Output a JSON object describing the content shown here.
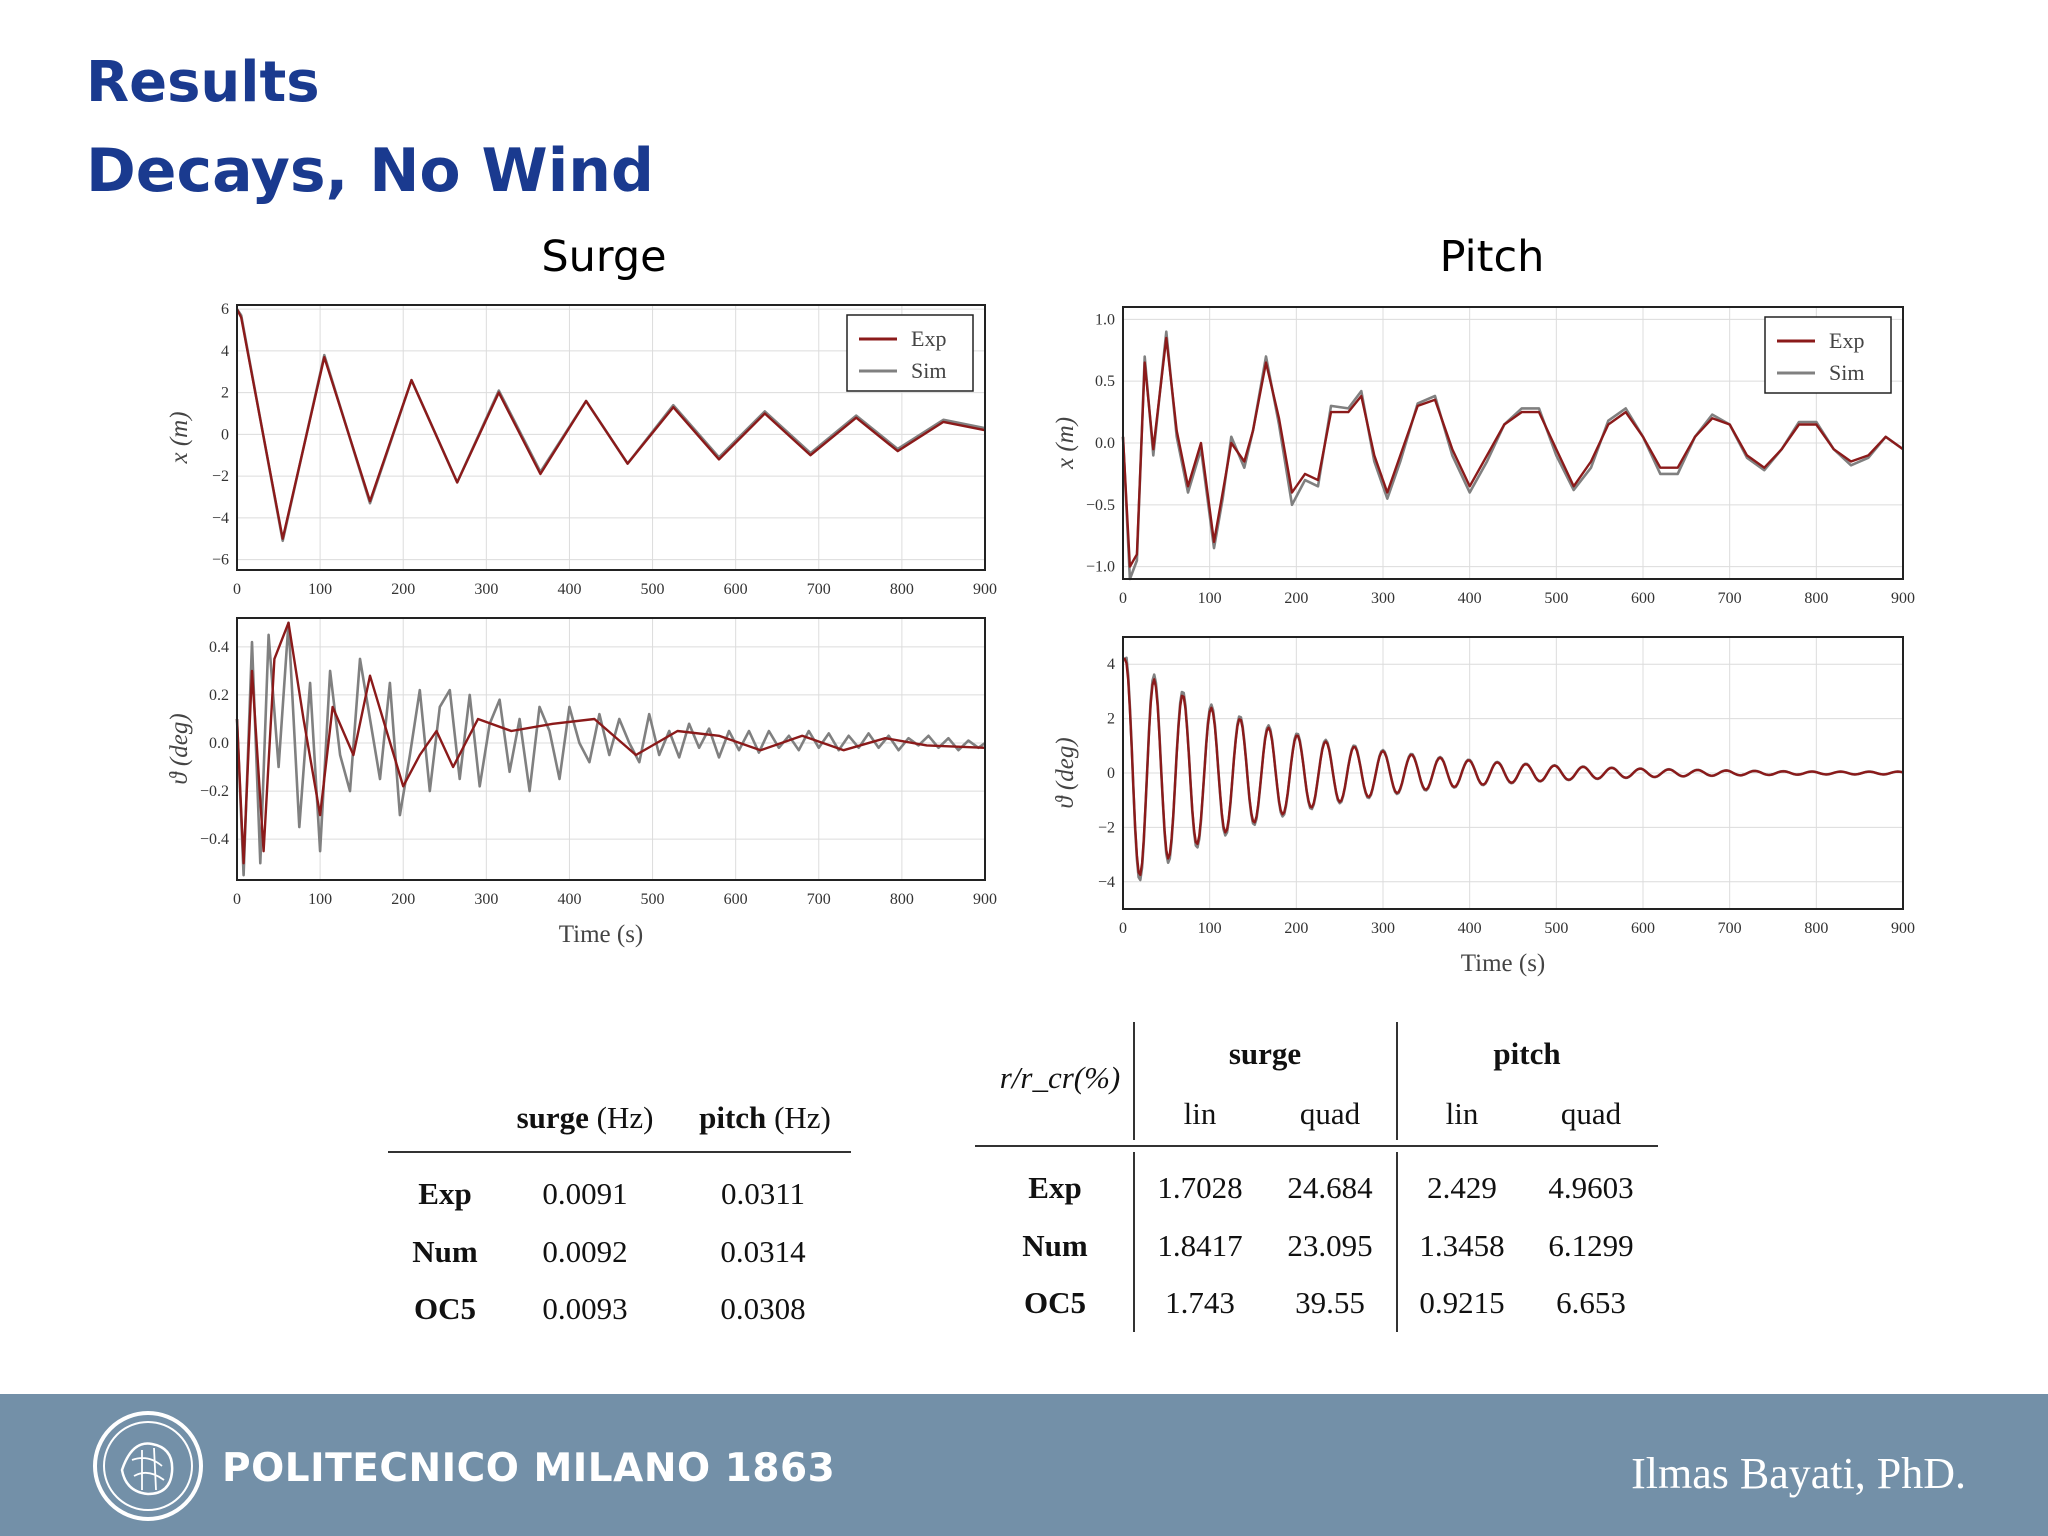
{
  "slide": {
    "title": "Results",
    "subtitle": "Decays, No Wind"
  },
  "figures": {
    "surge_title": "Surge",
    "pitch_title": "Pitch"
  },
  "colors": {
    "exp": "#8b1a1a",
    "sim": "#808080",
    "title": "#1a3a8f",
    "footer": "#7390a8"
  },
  "chart_data": [
    {
      "id": "surge-x",
      "type": "line",
      "xlabel": "",
      "ylabel": "x (m)",
      "xlim": [
        0,
        900
      ],
      "ylim": [
        -6.5,
        6.2
      ],
      "xticks": [
        0,
        100,
        200,
        300,
        400,
        500,
        600,
        700,
        800,
        900
      ],
      "yticks": [
        -6,
        -4,
        -2,
        0,
        2,
        4,
        6
      ],
      "ytick_labels": [
        "−6",
        "−4",
        "−2",
        "0",
        "2",
        "4",
        "6"
      ],
      "grid": true,
      "legend": "top-right",
      "series": [
        {
          "name": "Exp",
          "x": [
            0,
            5,
            55,
            105,
            160,
            210,
            265,
            315,
            365,
            420,
            470,
            525,
            580,
            635,
            690,
            745,
            795,
            850,
            900
          ],
          "values": [
            6,
            5.6,
            -5.0,
            3.7,
            -3.2,
            2.6,
            -2.3,
            2.0,
            -1.9,
            1.6,
            -1.4,
            1.3,
            -1.2,
            1.0,
            -1.0,
            0.8,
            -0.8,
            0.6,
            0.2
          ]
        },
        {
          "name": "Sim",
          "x": [
            0,
            5,
            55,
            105,
            160,
            210,
            265,
            315,
            365,
            420,
            470,
            525,
            580,
            635,
            690,
            745,
            795,
            850,
            900
          ],
          "values": [
            6,
            5.7,
            -5.1,
            3.8,
            -3.3,
            2.6,
            -2.3,
            2.1,
            -1.8,
            1.6,
            -1.4,
            1.4,
            -1.1,
            1.1,
            -0.9,
            0.9,
            -0.7,
            0.7,
            0.3
          ]
        }
      ]
    },
    {
      "id": "surge-theta",
      "type": "line",
      "xlabel": "Time (s)",
      "ylabel": "ϑ (deg)",
      "xlim": [
        0,
        900
      ],
      "ylim": [
        -0.57,
        0.52
      ],
      "xticks": [
        0,
        100,
        200,
        300,
        400,
        500,
        600,
        700,
        800,
        900
      ],
      "yticks": [
        -0.4,
        -0.2,
        0,
        0.2,
        0.4
      ],
      "ytick_labels": [
        "−0.4",
        "−0.2",
        "0.0",
        "0.2",
        "0.4"
      ],
      "grid": true,
      "series": [
        {
          "name": "Exp",
          "x": [
            0,
            8,
            18,
            32,
            45,
            62,
            80,
            100,
            115,
            140,
            160,
            180,
            200,
            220,
            240,
            260,
            290,
            330,
            380,
            430,
            480,
            530,
            580,
            630,
            680,
            730,
            780,
            830,
            900
          ],
          "values": [
            0.1,
            -0.5,
            0.3,
            -0.45,
            0.35,
            0.5,
            0.1,
            -0.3,
            0.15,
            -0.05,
            0.28,
            0.05,
            -0.18,
            -0.05,
            0.05,
            -0.1,
            0.1,
            0.05,
            0.08,
            0.1,
            -0.05,
            0.05,
            0.03,
            -0.03,
            0.03,
            -0.03,
            0.02,
            -0.01,
            -0.02
          ]
        },
        {
          "name": "Sim",
          "x": [
            0,
            8,
            18,
            28,
            38,
            50,
            62,
            75,
            88,
            100,
            112,
            124,
            136,
            148,
            160,
            172,
            184,
            196,
            208,
            220,
            232,
            244,
            256,
            268,
            280,
            292,
            304,
            316,
            328,
            340,
            352,
            364,
            376,
            388,
            400,
            412,
            424,
            436,
            448,
            460,
            472,
            484,
            496,
            508,
            520,
            532,
            544,
            556,
            568,
            580,
            592,
            604,
            616,
            628,
            640,
            652,
            664,
            676,
            688,
            700,
            712,
            724,
            736,
            748,
            760,
            772,
            784,
            796,
            808,
            820,
            832,
            844,
            856,
            868,
            880,
            892,
            900
          ],
          "values": [
            0.1,
            -0.55,
            0.42,
            -0.5,
            0.45,
            -0.1,
            0.5,
            -0.35,
            0.25,
            -0.45,
            0.3,
            -0.05,
            -0.2,
            0.35,
            0.1,
            -0.15,
            0.25,
            -0.3,
            -0.05,
            0.22,
            -0.2,
            0.15,
            0.22,
            -0.15,
            0.2,
            -0.18,
            0.08,
            0.18,
            -0.12,
            0.1,
            -0.2,
            0.15,
            0.05,
            -0.15,
            0.15,
            0.0,
            -0.08,
            0.12,
            -0.05,
            0.1,
            0.0,
            -0.08,
            0.12,
            -0.05,
            0.05,
            -0.06,
            0.08,
            -0.02,
            0.06,
            -0.06,
            0.05,
            -0.03,
            0.05,
            -0.04,
            0.05,
            -0.02,
            0.03,
            -0.03,
            0.05,
            -0.02,
            0.04,
            -0.03,
            0.03,
            -0.02,
            0.04,
            -0.02,
            0.03,
            -0.03,
            0.02,
            -0.01,
            0.03,
            -0.02,
            0.02,
            -0.03,
            0.01,
            -0.02,
            0.0
          ]
        }
      ]
    },
    {
      "id": "pitch-x",
      "type": "line",
      "xlabel": "",
      "ylabel": "x (m)",
      "xlim": [
        0,
        900
      ],
      "ylim": [
        -1.1,
        1.1
      ],
      "xticks": [
        0,
        100,
        200,
        300,
        400,
        500,
        600,
        700,
        800,
        900
      ],
      "yticks": [
        -1.0,
        -0.5,
        0,
        0.5,
        1.0
      ],
      "ytick_labels": [
        "−1.0",
        "−0.5",
        "0.0",
        "0.5",
        "1.0"
      ],
      "grid": true,
      "legend": "top-right",
      "series": [
        {
          "name": "Exp",
          "x": [
            0,
            8,
            16,
            25,
            35,
            50,
            62,
            75,
            90,
            105,
            115,
            125,
            140,
            150,
            165,
            180,
            195,
            210,
            225,
            240,
            260,
            275,
            290,
            305,
            320,
            340,
            360,
            380,
            400,
            420,
            440,
            460,
            480,
            500,
            520,
            540,
            560,
            580,
            600,
            620,
            640,
            660,
            680,
            700,
            720,
            740,
            760,
            780,
            800,
            820,
            840,
            860,
            880,
            900
          ],
          "values": [
            0.05,
            -1.0,
            -0.9,
            0.65,
            -0.05,
            0.85,
            0.1,
            -0.35,
            0.0,
            -0.8,
            -0.4,
            0.0,
            -0.15,
            0.1,
            0.65,
            0.2,
            -0.4,
            -0.25,
            -0.3,
            0.25,
            0.25,
            0.38,
            -0.1,
            -0.4,
            -0.1,
            0.3,
            0.35,
            -0.05,
            -0.35,
            -0.1,
            0.15,
            0.25,
            0.25,
            -0.05,
            -0.35,
            -0.15,
            0.15,
            0.25,
            0.05,
            -0.2,
            -0.2,
            0.05,
            0.2,
            0.15,
            -0.1,
            -0.2,
            -0.05,
            0.15,
            0.15,
            -0.05,
            -0.15,
            -0.1,
            0.05,
            -0.05
          ]
        },
        {
          "name": "Sim",
          "x": [
            0,
            8,
            16,
            25,
            35,
            50,
            62,
            75,
            90,
            105,
            115,
            125,
            140,
            150,
            165,
            180,
            195,
            210,
            225,
            240,
            260,
            275,
            290,
            305,
            320,
            340,
            360,
            380,
            400,
            420,
            440,
            460,
            480,
            500,
            520,
            540,
            560,
            580,
            600,
            620,
            640,
            660,
            680,
            700,
            720,
            740,
            760,
            780,
            800,
            820,
            840,
            860,
            880,
            900
          ],
          "values": [
            0.05,
            -1.1,
            -0.95,
            0.7,
            -0.1,
            0.9,
            0.05,
            -0.4,
            -0.05,
            -0.85,
            -0.45,
            0.05,
            -0.2,
            0.1,
            0.7,
            0.15,
            -0.5,
            -0.3,
            -0.35,
            0.3,
            0.28,
            0.42,
            -0.15,
            -0.45,
            -0.15,
            0.32,
            0.38,
            -0.1,
            -0.4,
            -0.15,
            0.15,
            0.28,
            0.28,
            -0.1,
            -0.38,
            -0.2,
            0.18,
            0.28,
            0.05,
            -0.25,
            -0.25,
            0.05,
            0.23,
            0.15,
            -0.12,
            -0.22,
            -0.05,
            0.17,
            0.17,
            -0.05,
            -0.18,
            -0.12,
            0.05,
            -0.05
          ]
        }
      ]
    },
    {
      "id": "pitch-theta",
      "type": "line",
      "xlabel": "Time (s)",
      "ylabel": "ϑ (deg)",
      "xlim": [
        0,
        900
      ],
      "ylim": [
        -5,
        5
      ],
      "xticks": [
        0,
        100,
        200,
        300,
        400,
        500,
        600,
        700,
        800,
        900
      ],
      "yticks": [
        -4,
        -2,
        0,
        2,
        4
      ],
      "ytick_labels": [
        "−4",
        "−2",
        "0",
        "2",
        "4"
      ],
      "grid": true,
      "decay": {
        "period": 33,
        "start_time": 3,
        "amplitude0": 4.2,
        "exp_offset": -0.35,
        "decay_rate": 0.0055,
        "floor": 0.05,
        "sim_gain": 1.05
      },
      "series": [
        {
          "name": "Exp"
        },
        {
          "name": "Sim"
        }
      ]
    }
  ],
  "table_freq": {
    "col_headers": [
      {
        "bold": "surge",
        "unit": " (Hz)"
      },
      {
        "bold": "pitch",
        "unit": " (Hz)"
      }
    ],
    "rows": [
      {
        "label": "Exp",
        "surge": "0.0091",
        "pitch": "0.0311"
      },
      {
        "label": "Num",
        "surge": "0.0092",
        "pitch": "0.0314"
      },
      {
        "label": "OC5",
        "surge": "0.0093",
        "pitch": "0.0308"
      }
    ]
  },
  "table_damping": {
    "corner": "r/r_cr(%)",
    "groups": [
      "surge",
      "pitch"
    ],
    "subheaders": [
      "lin",
      "quad",
      "lin",
      "quad"
    ],
    "rows": [
      {
        "label": "Exp",
        "values": [
          "1.7028",
          "24.684",
          "2.429",
          "4.9603"
        ]
      },
      {
        "label": "Num",
        "values": [
          "1.8417",
          "23.095",
          "1.3458",
          "6.1299"
        ]
      },
      {
        "label": "OC5",
        "values": [
          "1.743",
          "39.55",
          "0.9215",
          "6.653"
        ]
      }
    ]
  },
  "footer": {
    "org": "POLITECNICO MILANO 1863",
    "author": "Ilmas Bayati, PhD.",
    "logo_icon": "university-seal-icon"
  }
}
